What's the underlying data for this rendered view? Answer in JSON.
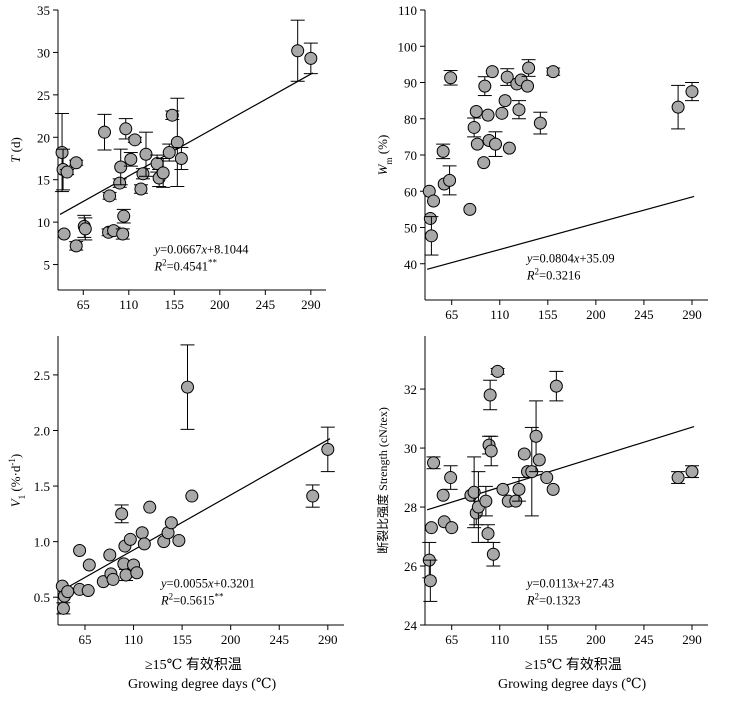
{
  "xlabel_cn": "≥15℃ 有效积温",
  "xlabel_en": "Growing degree days (℃)",
  "chart_data": [
    {
      "id": "T",
      "type": "scatter",
      "ylabel_parts": [
        "T",
        " (d)"
      ],
      "equation": "y=0.0667x+8.1044",
      "r2": "R²=0.4541**",
      "xticks": [
        65,
        110,
        155,
        200,
        245,
        290
      ],
      "yticks": [
        5,
        10,
        15,
        20,
        25,
        30,
        35
      ],
      "xlim": [
        40,
        305
      ],
      "ylim": [
        2,
        35
      ],
      "fit": {
        "slope": 0.0667,
        "intercept": 8.1044,
        "x_range": [
          42,
          292
        ]
      },
      "points": [
        [
          44,
          18.2,
          4.6
        ],
        [
          45,
          16.2,
          2.4
        ],
        [
          46,
          8.6,
          0
        ],
        [
          49,
          15.9,
          0.3
        ],
        [
          58,
          17.0,
          0.3
        ],
        [
          58,
          7.2,
          0.5
        ],
        [
          66,
          9.5,
          1.3
        ],
        [
          67,
          9.2,
          1.3
        ],
        [
          86,
          20.6,
          2.1
        ],
        [
          90,
          8.8,
          0.4
        ],
        [
          91,
          13.1,
          0.4
        ],
        [
          95,
          9.0,
          0.4
        ],
        [
          101,
          14.6,
          0.5
        ],
        [
          102,
          16.5,
          2.1
        ],
        [
          104,
          8.6,
          0.6
        ],
        [
          105,
          10.7,
          0.8
        ],
        [
          107,
          21.0,
          1.2
        ],
        [
          112,
          17.4,
          0.8
        ],
        [
          116,
          19.7,
          0.3
        ],
        [
          122,
          13.9,
          0.5
        ],
        [
          124,
          15.7,
          0.6
        ],
        [
          127,
          18.0,
          2.6
        ],
        [
          138,
          16.9,
          1.0
        ],
        [
          140,
          15.2,
          1.0
        ],
        [
          144,
          15.8,
          1.7
        ],
        [
          150,
          18.2,
          1.0
        ],
        [
          153,
          22.6,
          0.5
        ],
        [
          158,
          19.4,
          5.2
        ],
        [
          162,
          17.5,
          1.3
        ],
        [
          277,
          30.2,
          3.6
        ],
        [
          290,
          29.3,
          1.8
        ]
      ]
    },
    {
      "id": "Wm",
      "type": "scatter",
      "ylabel_parts": [
        "W",
        "m",
        " (%)"
      ],
      "equation": "y=0.0804x+35.09",
      "r2": "R²=0.3216",
      "xticks": [
        65,
        110,
        155,
        200,
        245,
        290
      ],
      "yticks": [
        40,
        50,
        60,
        70,
        80,
        90,
        100,
        110
      ],
      "xlim": [
        40,
        305
      ],
      "ylim": [
        30,
        110
      ],
      "fit": {
        "slope": 0.0804,
        "intercept": 35.09,
        "x_range": [
          42,
          292
        ]
      },
      "points": [
        [
          44,
          60.0,
          0
        ],
        [
          45,
          52.5,
          0
        ],
        [
          46,
          47.7,
          5.3
        ],
        [
          48,
          57.3,
          0
        ],
        [
          57,
          71.0,
          2.0
        ],
        [
          58,
          62.0,
          0
        ],
        [
          63,
          63.0,
          4.0
        ],
        [
          64,
          91.3,
          2.0
        ],
        [
          82,
          55.0,
          0
        ],
        [
          86,
          77.6,
          2.6
        ],
        [
          88,
          82.0,
          0
        ],
        [
          89,
          73.0,
          0
        ],
        [
          95,
          67.9,
          0
        ],
        [
          96,
          89.0,
          2.6
        ],
        [
          99,
          81.0,
          0
        ],
        [
          100,
          74.0,
          0
        ],
        [
          103,
          93.0,
          0
        ],
        [
          106,
          73.0,
          3.4
        ],
        [
          112,
          81.5,
          0
        ],
        [
          115,
          85.0,
          0
        ],
        [
          117,
          91.5,
          2.3
        ],
        [
          119,
          71.9,
          0
        ],
        [
          126,
          89.6,
          0
        ],
        [
          128,
          82.5,
          2.5
        ],
        [
          130,
          90.7,
          0
        ],
        [
          136,
          89.0,
          0
        ],
        [
          137,
          94.0,
          2.3
        ],
        [
          148,
          78.8,
          3.0
        ],
        [
          160,
          93.0,
          1.0
        ],
        [
          277,
          83.2,
          6.0
        ],
        [
          290,
          87.5,
          2.5
        ]
      ]
    },
    {
      "id": "V1",
      "type": "scatter",
      "ylabel_parts": [
        "V",
        "1",
        " (%·d",
        "-1",
        ")"
      ],
      "equation": "y=0.0055x+0.3201",
      "r2": "R²=0.5615**",
      "xticks": [
        65,
        110,
        155,
        200,
        245,
        290
      ],
      "yticks": [
        0.5,
        1.0,
        1.5,
        2.0,
        2.5
      ],
      "yticklabels": [
        "0.5",
        "1.0",
        "1.5",
        "2.0",
        "2.5"
      ],
      "xlim": [
        40,
        305
      ],
      "ylim": [
        0.25,
        2.85
      ],
      "fit": {
        "slope": 0.0055,
        "intercept": 0.3201,
        "x_range": [
          42,
          292
        ]
      },
      "points": [
        [
          44,
          0.6,
          0
        ],
        [
          45,
          0.4,
          0.05
        ],
        [
          46,
          0.51,
          0
        ],
        [
          49,
          0.55,
          0
        ],
        [
          60,
          0.92,
          0
        ],
        [
          60,
          0.57,
          0
        ],
        [
          68,
          0.56,
          0
        ],
        [
          69,
          0.79,
          0
        ],
        [
          82,
          0.64,
          0
        ],
        [
          88,
          0.88,
          0
        ],
        [
          89,
          0.71,
          0
        ],
        [
          91,
          0.66,
          0
        ],
        [
          99,
          1.25,
          0.08
        ],
        [
          101,
          0.8,
          0
        ],
        [
          102,
          0.96,
          0
        ],
        [
          103,
          0.7,
          0.05
        ],
        [
          107,
          1.02,
          0
        ],
        [
          110,
          0.79,
          0
        ],
        [
          113,
          0.72,
          0
        ],
        [
          118,
          1.08,
          0
        ],
        [
          120,
          0.98,
          0
        ],
        [
          125,
          1.31,
          0
        ],
        [
          138,
          1.0,
          0
        ],
        [
          142,
          1.08,
          0
        ],
        [
          145,
          1.17,
          0
        ],
        [
          152,
          1.01,
          0
        ],
        [
          160,
          2.39,
          0.38
        ],
        [
          164,
          1.41,
          0
        ],
        [
          276,
          1.41,
          0.1
        ],
        [
          290,
          1.83,
          0.2
        ]
      ]
    },
    {
      "id": "Strength",
      "type": "scatter",
      "ylabel": "断裂比强度 Strength (cN/tex)",
      "equation": "y=0.0113x+27.43",
      "r2": "R²=0.1323",
      "xticks": [
        65,
        110,
        155,
        200,
        245,
        290
      ],
      "yticks": [
        24,
        26,
        28,
        30,
        32
      ],
      "xlim": [
        40,
        305
      ],
      "ylim": [
        24,
        33.8
      ],
      "fit": {
        "slope": 0.0113,
        "intercept": 27.43,
        "x_range": [
          42,
          292
        ]
      },
      "points": [
        [
          44,
          26.2,
          0.6
        ],
        [
          45,
          25.5,
          0.7
        ],
        [
          46,
          27.3,
          0
        ],
        [
          48,
          29.5,
          0.2
        ],
        [
          57,
          28.4,
          0
        ],
        [
          58,
          27.5,
          0
        ],
        [
          64,
          29.0,
          0.4
        ],
        [
          65,
          27.3,
          0
        ],
        [
          83,
          28.4,
          0
        ],
        [
          86,
          28.5,
          1.2
        ],
        [
          88,
          27.8,
          0.4
        ],
        [
          90,
          28.0,
          1.2
        ],
        [
          97,
          28.2,
          0.5
        ],
        [
          99,
          27.1,
          0.3
        ],
        [
          100,
          30.1,
          0.3
        ],
        [
          101,
          31.8,
          0.5
        ],
        [
          102,
          29.9,
          0.5
        ],
        [
          104,
          26.4,
          0.4
        ],
        [
          108,
          32.6,
          0.1
        ],
        [
          113,
          28.6,
          0
        ],
        [
          118,
          28.2,
          0
        ],
        [
          125,
          28.2,
          0
        ],
        [
          128,
          28.6,
          0.4
        ],
        [
          133,
          29.8,
          0
        ],
        [
          136,
          29.2,
          0
        ],
        [
          140,
          29.2,
          1.5
        ],
        [
          144,
          30.4,
          1.2
        ],
        [
          147,
          29.6,
          0
        ],
        [
          154,
          29.0,
          0
        ],
        [
          160,
          28.6,
          0
        ],
        [
          163,
          32.1,
          0.5
        ],
        [
          277,
          29.0,
          0.2
        ],
        [
          290,
          29.2,
          0.2
        ]
      ]
    }
  ]
}
